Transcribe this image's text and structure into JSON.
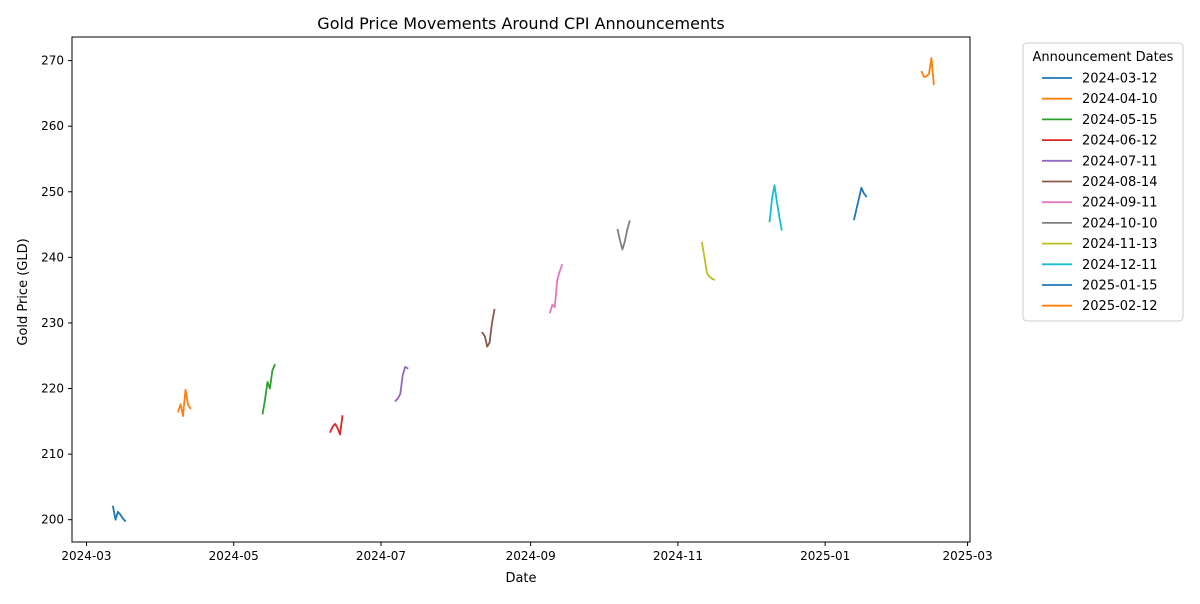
{
  "chart_data": {
    "type": "line",
    "title": "Gold Price Movements Around CPI Announcements",
    "xlabel": "Date",
    "ylabel": "Gold Price (GLD)",
    "xlim": [
      "2024-02-24",
      "2025-03-02"
    ],
    "ylim": [
      196.6,
      273.6
    ],
    "x_ticks": [
      "2024-03",
      "2024-05",
      "2024-07",
      "2024-09",
      "2024-11",
      "2025-01",
      "2025-03"
    ],
    "y_ticks": [
      200,
      210,
      220,
      230,
      240,
      250,
      260,
      270
    ],
    "grid": false,
    "legend": {
      "title": "Announcement Dates",
      "placement": "outside-right"
    },
    "series": [
      {
        "name": "2024-03-12",
        "color": "#1f77b4",
        "x": [
          "2024-03-12",
          "2024-03-13",
          "2024-03-14",
          "2024-03-15",
          "2024-03-16",
          "2024-03-17"
        ],
        "y": [
          202.0,
          200.0,
          201.2,
          200.8,
          200.2,
          199.8
        ]
      },
      {
        "name": "2024-04-10",
        "color": "#ff7f0e",
        "x": [
          "2024-04-08",
          "2024-04-09",
          "2024-04-10",
          "2024-04-11",
          "2024-04-12",
          "2024-04-13"
        ],
        "y": [
          216.5,
          217.6,
          215.8,
          219.8,
          217.6,
          217.0
        ]
      },
      {
        "name": "2024-05-15",
        "color": "#2ca02c",
        "x": [
          "2024-05-13",
          "2024-05-14",
          "2024-05-15",
          "2024-05-16",
          "2024-05-17",
          "2024-05-18"
        ],
        "y": [
          216.2,
          218.4,
          221.0,
          220.0,
          222.8,
          223.6
        ]
      },
      {
        "name": "2024-06-12",
        "color": "#d62728",
        "x": [
          "2024-06-10",
          "2024-06-11",
          "2024-06-12",
          "2024-06-13",
          "2024-06-14",
          "2024-06-15"
        ],
        "y": [
          213.4,
          214.2,
          214.6,
          214.0,
          213.0,
          215.8
        ]
      },
      {
        "name": "2024-07-11",
        "color": "#9467bd",
        "x": [
          "2024-07-07",
          "2024-07-08",
          "2024-07-09",
          "2024-07-10",
          "2024-07-11",
          "2024-07-12"
        ],
        "y": [
          218.1,
          218.5,
          219.2,
          222.0,
          223.3,
          223.1
        ]
      },
      {
        "name": "2024-08-14",
        "color": "#8c564b",
        "x": [
          "2024-08-12",
          "2024-08-13",
          "2024-08-14",
          "2024-08-15",
          "2024-08-16",
          "2024-08-17"
        ],
        "y": [
          228.5,
          228.0,
          226.4,
          227.0,
          230.0,
          232.0
        ]
      },
      {
        "name": "2024-09-11",
        "color": "#e377c2",
        "x": [
          "2024-09-09",
          "2024-09-10",
          "2024-09-11",
          "2024-09-12",
          "2024-09-13",
          "2024-09-14"
        ],
        "y": [
          231.6,
          232.8,
          232.4,
          236.5,
          237.8,
          238.8
        ]
      },
      {
        "name": "2024-10-10",
        "color": "#7f7f7f",
        "x": [
          "2024-10-07",
          "2024-10-08",
          "2024-10-09",
          "2024-10-10",
          "2024-10-11",
          "2024-10-12"
        ],
        "y": [
          244.2,
          242.6,
          241.2,
          242.4,
          244.2,
          245.5
        ]
      },
      {
        "name": "2024-11-13",
        "color": "#bcbd22",
        "x": [
          "2024-11-11",
          "2024-11-12",
          "2024-11-13",
          "2024-11-14",
          "2024-11-15",
          "2024-11-16"
        ],
        "y": [
          242.2,
          240.0,
          237.6,
          237.1,
          236.8,
          236.6
        ]
      },
      {
        "name": "2024-12-11",
        "color": "#17becf",
        "x": [
          "2024-12-09",
          "2024-12-10",
          "2024-12-11",
          "2024-12-12",
          "2024-12-13",
          "2024-12-14"
        ],
        "y": [
          245.5,
          249.0,
          251.0,
          248.5,
          246.2,
          244.2
        ]
      },
      {
        "name": "2025-01-15",
        "color": "#1f77b4",
        "x": [
          "2025-01-13",
          "2025-01-14",
          "2025-01-15",
          "2025-01-16",
          "2025-01-17",
          "2025-01-18"
        ],
        "y": [
          245.8,
          247.4,
          249.0,
          250.6,
          249.8,
          249.3
        ]
      },
      {
        "name": "2025-02-12",
        "color": "#ff7f0e",
        "x": [
          "2025-02-10",
          "2025-02-11",
          "2025-02-12",
          "2025-02-13",
          "2025-02-14",
          "2025-02-15"
        ],
        "y": [
          268.3,
          267.5,
          267.6,
          268.0,
          270.4,
          266.4
        ]
      }
    ]
  }
}
